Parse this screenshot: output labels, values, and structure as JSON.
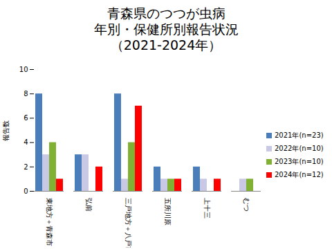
{
  "chart_data": {
    "type": "bar",
    "title": "青森県のつつが虫病\n年別・保健所別報告状況\n（2021-2024年）",
    "y_label": "報告数",
    "categories": [
      "東地方＋青森市",
      "弘前",
      "三戸地方＋八戸市",
      "五所川原",
      "上十三",
      "むつ"
    ],
    "series": [
      {
        "name": "2021年(n=23)",
        "color": "#4a7ebb",
        "values": [
          8,
          3,
          8,
          2,
          2,
          0
        ]
      },
      {
        "name": "2022年(n=10)",
        "color": "#c9c9e6",
        "values": [
          3,
          3,
          1,
          1,
          1,
          1
        ]
      },
      {
        "name": "2023年(n=10)",
        "color": "#80b133",
        "values": [
          4,
          0,
          4,
          1,
          0,
          1
        ]
      },
      {
        "name": "2024年(n=12)",
        "color": "#ff0000",
        "values": [
          1,
          2,
          7,
          1,
          1,
          0
        ]
      }
    ],
    "ylim": [
      0,
      10
    ],
    "yticks": [
      0,
      2,
      4,
      6,
      8,
      10
    ],
    "grid": false,
    "legend": "right"
  }
}
